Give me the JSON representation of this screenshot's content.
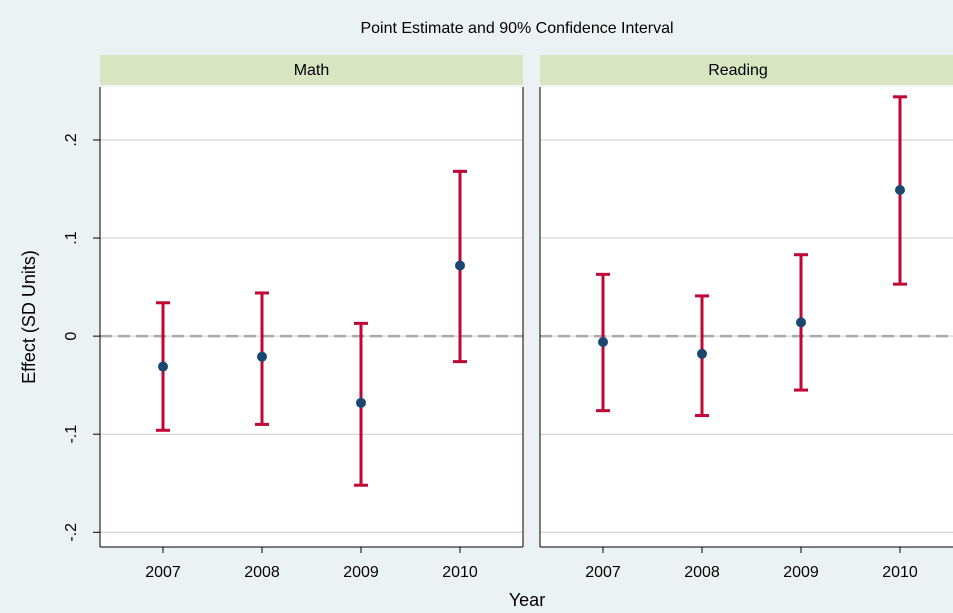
{
  "chart_data": {
    "type": "errorbar",
    "title": "Point Estimate and 90% Confidence Interval",
    "x_label": "Year",
    "y_label": "Effect (SD Units)",
    "ylim": [
      -0.215,
      0.254
    ],
    "yticks": [
      {
        "value": -0.2,
        "label": "-.2"
      },
      {
        "value": -0.1,
        "label": "-.1"
      },
      0,
      {
        "value": 0.1,
        "label": ".1"
      },
      {
        "value": 0.2,
        "label": ".2"
      }
    ],
    "grid": true,
    "reference_line": 0,
    "point_color": "#1a476f",
    "bar_color": "#c10534",
    "strip_color": "#d8e5c0",
    "panels": [
      {
        "title": "Math",
        "categories": [
          "2007",
          "2008",
          "2009",
          "2010"
        ],
        "values": [
          -0.031,
          -0.021,
          -0.068,
          0.072
        ],
        "lower": [
          -0.096,
          -0.09,
          -0.152,
          -0.026
        ],
        "upper": [
          0.034,
          0.044,
          0.013,
          0.168
        ]
      },
      {
        "title": "Reading",
        "categories": [
          "2007",
          "2008",
          "2009",
          "2010"
        ],
        "values": [
          -0.006,
          -0.018,
          0.014,
          0.149
        ],
        "lower": [
          -0.076,
          -0.081,
          -0.055,
          0.053
        ],
        "upper": [
          0.063,
          0.041,
          0.083,
          0.244
        ]
      }
    ]
  }
}
